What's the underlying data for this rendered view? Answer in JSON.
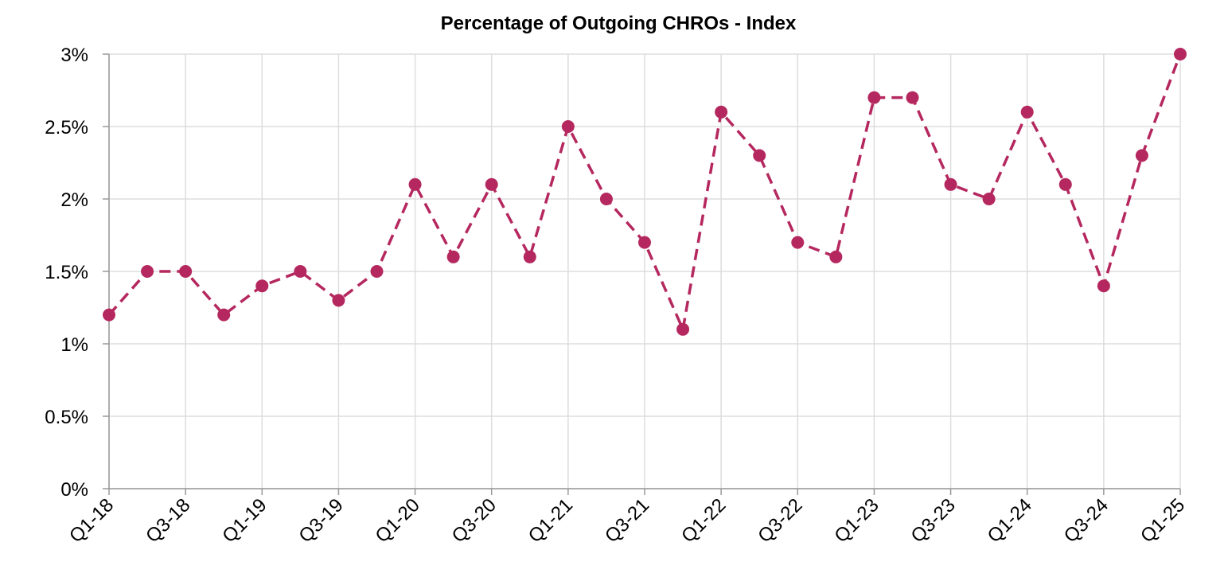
{
  "chart_data": {
    "type": "line",
    "title": "Percentage of Outgoing CHROs - Index",
    "xlabel": "",
    "ylabel": "",
    "categories": [
      "Q1-18",
      "Q2-18",
      "Q3-18",
      "Q4-18",
      "Q1-19",
      "Q2-19",
      "Q3-19",
      "Q4-19",
      "Q1-20",
      "Q2-20",
      "Q3-20",
      "Q4-20",
      "Q1-21",
      "Q2-21",
      "Q3-21",
      "Q4-21",
      "Q1-22",
      "Q2-22",
      "Q3-22",
      "Q4-22",
      "Q1-23",
      "Q2-23",
      "Q3-23",
      "Q4-23",
      "Q1-24",
      "Q2-24",
      "Q3-24",
      "Q4-24",
      "Q1-25"
    ],
    "x_tick_labels": [
      "Q1-18",
      "Q3-18",
      "Q1-19",
      "Q3-19",
      "Q1-20",
      "Q3-20",
      "Q1-21",
      "Q3-21",
      "Q1-22",
      "Q3-22",
      "Q1-23",
      "Q3-23",
      "Q1-24",
      "Q3-24",
      "Q1-25"
    ],
    "y_tick_labels": [
      "0%",
      "0.5%",
      "1%",
      "1.5%",
      "2%",
      "2.5%",
      "3%"
    ],
    "y_ticks": [
      0,
      0.5,
      1,
      1.5,
      2,
      2.5,
      3
    ],
    "ylim": [
      0,
      3
    ],
    "grid": true,
    "legend": "none",
    "series": [
      {
        "values": [
          1.2,
          1.5,
          1.5,
          1.2,
          1.4,
          1.5,
          1.3,
          1.5,
          2.1,
          1.6,
          2.1,
          1.6,
          2.5,
          2.0,
          1.7,
          1.1,
          2.6,
          2.3,
          1.7,
          1.6,
          2.7,
          2.7,
          2.1,
          2.0,
          2.6,
          2.1,
          1.4,
          2.3,
          3.0
        ],
        "color": "#b5285f",
        "line_style": "dashed",
        "marker": "circle"
      }
    ]
  }
}
